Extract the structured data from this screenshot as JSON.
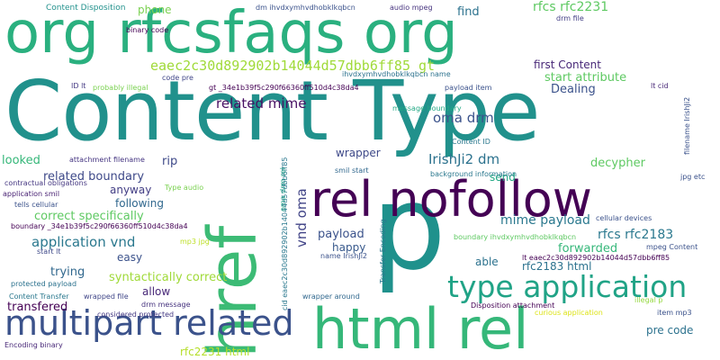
{
  "words": [
    {
      "text": "Content Type",
      "color": "#21918c"
    },
    {
      "text": "p",
      "color": "#1f918c"
    },
    {
      "text": "org rfcsfaqs org",
      "color": "#2ab07f"
    },
    {
      "text": "rel nofollow",
      "color": "#440154"
    },
    {
      "text": "html rel",
      "color": "#35b779"
    },
    {
      "text": "href",
      "color": "#3cbb75"
    },
    {
      "text": "multipart related",
      "color": "#3b528b"
    },
    {
      "text": "type application",
      "color": "#20a386"
    },
    {
      "text": "eaec2c30d892902b14044d57dbb6ff85 gt",
      "color": "#a0da39"
    },
    {
      "text": "related mime",
      "color": "#471063"
    },
    {
      "text": "oma drm",
      "color": "#3b528b"
    },
    {
      "text": "IrishJi2 dm",
      "color": "#2c728e"
    },
    {
      "text": "application vnd",
      "color": "#2a788e"
    },
    {
      "text": "rel",
      "color": "#2a788e"
    },
    {
      "text": "mime payload",
      "color": "#2a788e"
    },
    {
      "text": "rfcs rfc2183",
      "color": "#2a788e"
    },
    {
      "text": "vnd oma",
      "color": "#414487"
    },
    {
      "text": "rfcs rfc2231",
      "color": "#5ec962"
    },
    {
      "text": "first Content",
      "color": "#482878"
    },
    {
      "text": "Dealing",
      "color": "#3b528b"
    },
    {
      "text": "start attribute",
      "color": "#5ec962"
    },
    {
      "text": "find",
      "color": "#2c728e"
    },
    {
      "text": "phone",
      "color": "#7ad151"
    },
    {
      "text": "wrapper",
      "color": "#3e4989"
    },
    {
      "text": "decypher",
      "color": "#5ec962"
    },
    {
      "text": "related boundary",
      "color": "#3e4989"
    },
    {
      "text": "correct specifically",
      "color": "#5ec962"
    },
    {
      "text": "following",
      "color": "#31688e"
    },
    {
      "text": "anyway",
      "color": "#433e85"
    },
    {
      "text": "rip",
      "color": "#3e4989"
    },
    {
      "text": "looked",
      "color": "#35b779"
    },
    {
      "text": "send",
      "color": "#22a884"
    },
    {
      "text": "forwarded",
      "color": "#35b779"
    },
    {
      "text": "payload",
      "color": "#3b528b"
    },
    {
      "text": "easy",
      "color": "#3b528b"
    },
    {
      "text": "syntactically correct",
      "color": "#a0da39"
    },
    {
      "text": "allow",
      "color": "#482878"
    },
    {
      "text": "happy",
      "color": "#38598c"
    },
    {
      "text": "able",
      "color": "#2c728e"
    },
    {
      "text": "trying",
      "color": "#31688e"
    },
    {
      "text": "transfered",
      "color": "#440154"
    },
    {
      "text": "rfc2183 html",
      "color": "#2c728e"
    },
    {
      "text": "pre code",
      "color": "#2c728e"
    },
    {
      "text": "rfc2231 html",
      "color": "#b5de2b"
    },
    {
      "text": "Content Disposition",
      "color": "#21918c"
    },
    {
      "text": "binary code",
      "color": "#440154"
    },
    {
      "text": "dm ihvdxymhvdhobklkqbcn",
      "color": "#3b528b"
    },
    {
      "text": "audio mpeg",
      "color": "#46337e"
    },
    {
      "text": "drm file",
      "color": "#433e85"
    },
    {
      "text": "ID lt",
      "color": "#443983"
    },
    {
      "text": "probably illegal",
      "color": "#7ad151"
    },
    {
      "text": "code pre",
      "color": "#404688"
    },
    {
      "text": "gt _34e1b39f5c290f66360ff510d4c38da4",
      "color": "#440154"
    },
    {
      "text": "ihvdxymhvdhobklkqbcn name",
      "color": "#2c728e"
    },
    {
      "text": "payload item",
      "color": "#3b528b"
    },
    {
      "text": "lt cid",
      "color": "#482878"
    },
    {
      "text": "filename IrishJi2",
      "color": "#3b528b"
    },
    {
      "text": "message boundary",
      "color": "#22a884"
    },
    {
      "text": "Content ID",
      "color": "#2a788e"
    },
    {
      "text": "attachment filename",
      "color": "#453581"
    },
    {
      "text": "contractual obligations",
      "color": "#453781"
    },
    {
      "text": "application smil",
      "color": "#482173"
    },
    {
      "text": "tells cellular",
      "color": "#3b528b"
    },
    {
      "text": "boundary _34e1b39f5c290f66360ff510d4c38da4",
      "color": "#440154"
    },
    {
      "text": "start lt",
      "color": "#3e4989"
    },
    {
      "text": "protected payload",
      "color": "#2c728e"
    },
    {
      "text": "Content Transfer",
      "color": "#2a788e"
    },
    {
      "text": "wrapped file",
      "color": "#404688"
    },
    {
      "text": "considered protected",
      "color": "#443983"
    },
    {
      "text": "drm message",
      "color": "#46337e"
    },
    {
      "text": "Encoding binary",
      "color": "#482878"
    },
    {
      "text": "Type audio",
      "color": "#7ad151"
    },
    {
      "text": "mp3 jpg",
      "color": "#bddf26"
    },
    {
      "text": "smil start",
      "color": "#31688e"
    },
    {
      "text": "background information",
      "color": "#2a788e"
    },
    {
      "text": "jpg etc",
      "color": "#3b528b"
    },
    {
      "text": "cellular devices",
      "color": "#3b528b"
    },
    {
      "text": "boundary ihvdxymhvdhobklkqbcn",
      "color": "#5ec962"
    },
    {
      "text": "mpeg Content",
      "color": "#3b528b"
    },
    {
      "text": "lt eaec2c30d892902b14044d57dbb6ff85",
      "color": "#440154"
    },
    {
      "text": "name IrishJi2",
      "color": "#3b528b"
    },
    {
      "text": "wrapper around",
      "color": "#31688e"
    },
    {
      "text": "illegal p",
      "color": "#95d840"
    },
    {
      "text": "Disposition attachment",
      "color": "#440154"
    },
    {
      "text": "curious application",
      "color": "#dde318"
    },
    {
      "text": "item mp3",
      "color": "#3b528b"
    },
    {
      "text": "cid eaec2c30d892902b14044d57dbb6ff85",
      "color": "#2a788e"
    },
    {
      "text": "Transfer Encoding",
      "color": "#2a788e"
    },
    {
      "text": "oma drm rel",
      "color": "#1fa187"
    }
  ]
}
